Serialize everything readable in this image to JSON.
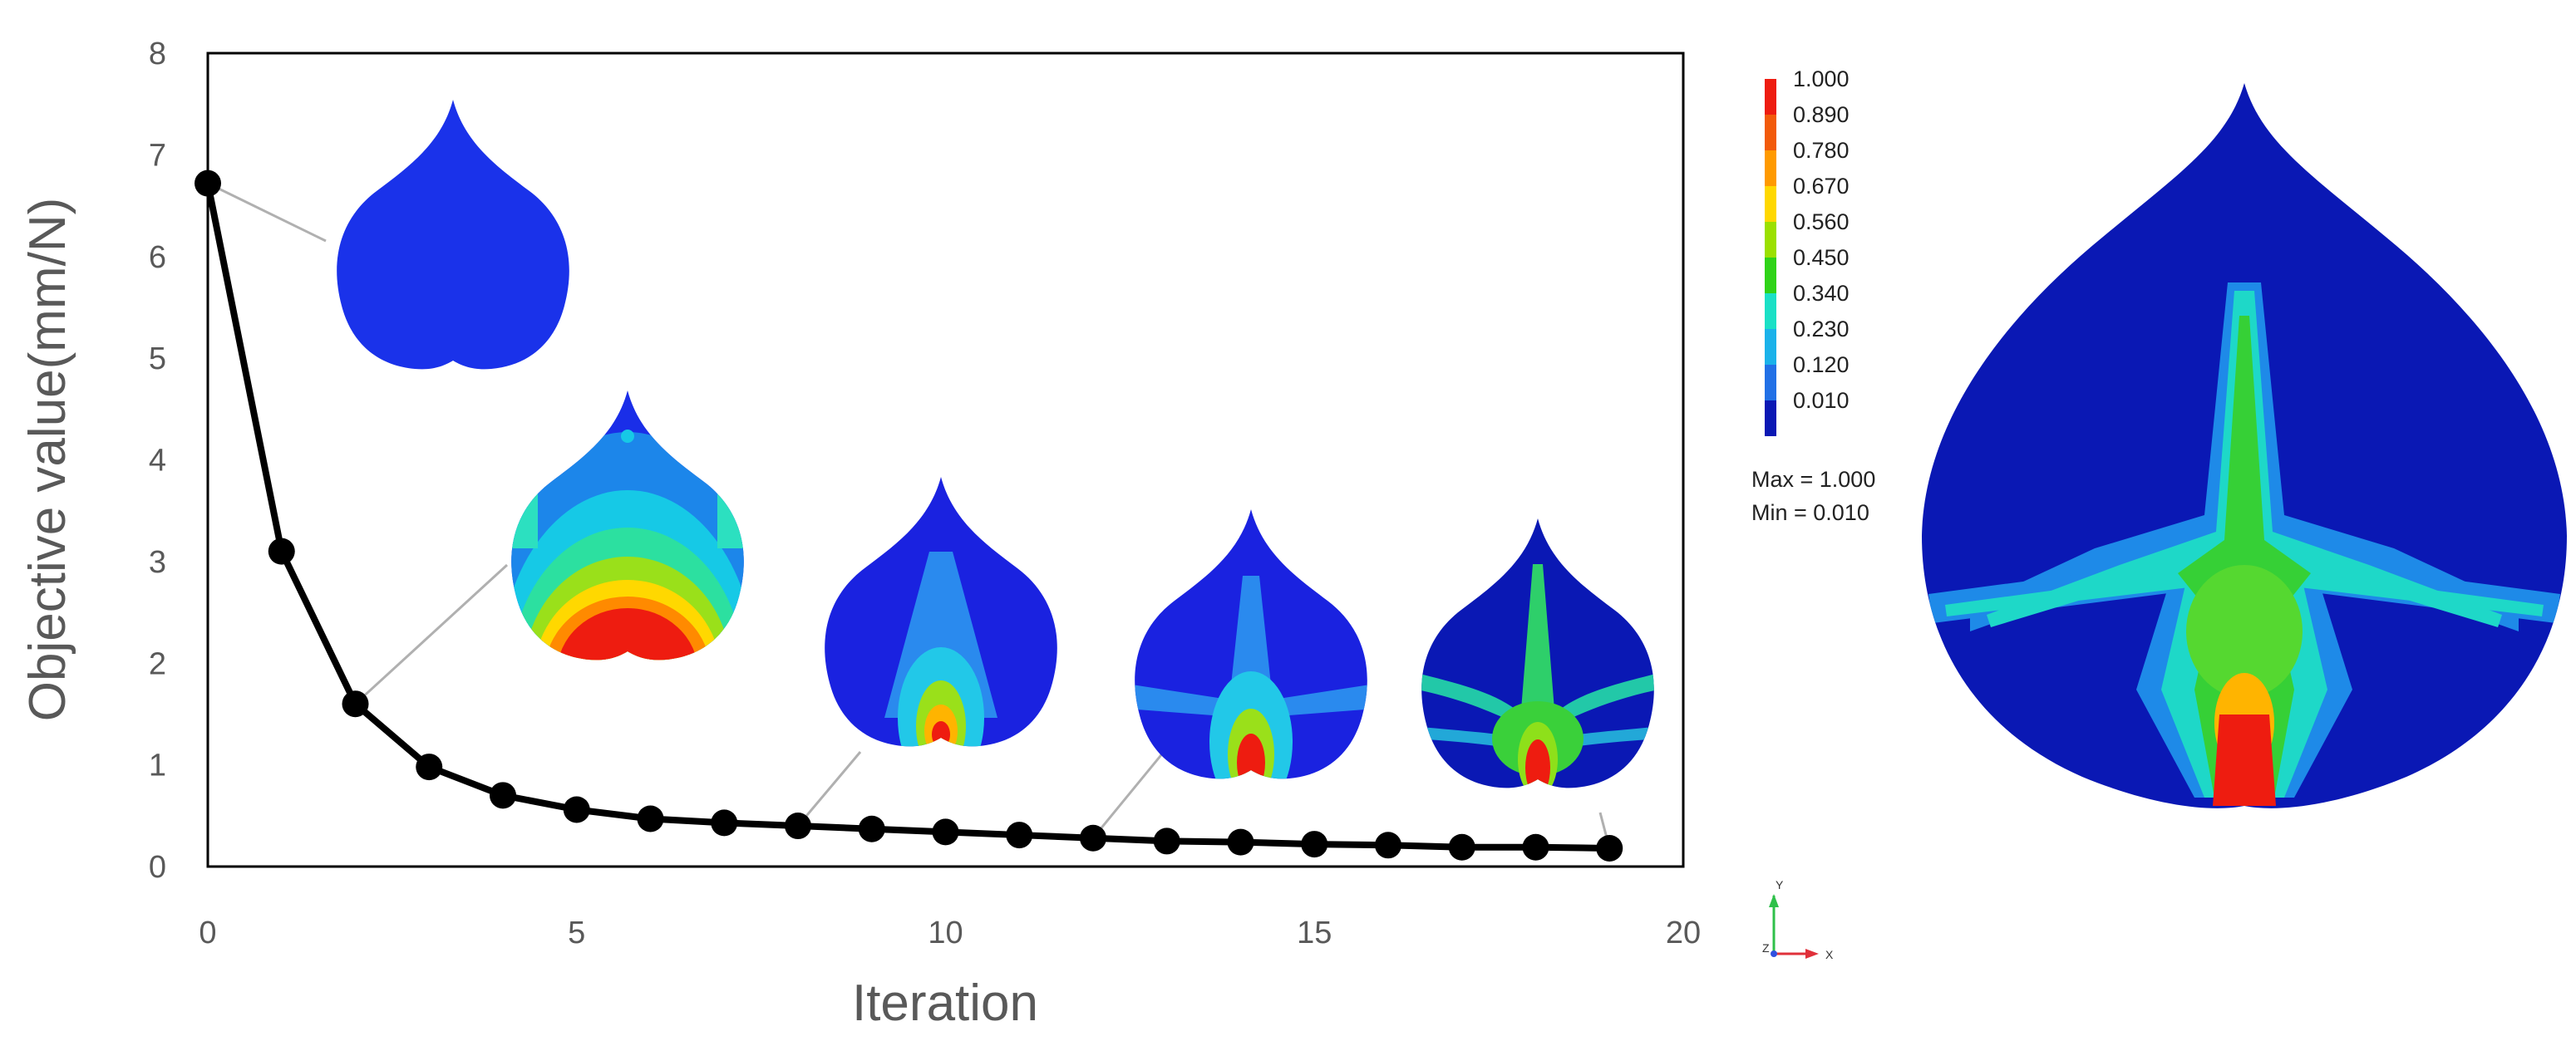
{
  "chart_data": {
    "type": "line",
    "title": "",
    "xlabel": "Iteration",
    "ylabel": "Objective value(mm/N)",
    "xlim": [
      0,
      20
    ],
    "ylim": [
      0,
      8
    ],
    "xticks": [
      0,
      5,
      10,
      15,
      20
    ],
    "yticks": [
      0,
      1,
      2,
      3,
      4,
      5,
      6,
      7,
      8
    ],
    "grid": false,
    "series": [
      {
        "name": "Objective value",
        "color": "#000000",
        "x": [
          0,
          1,
          2,
          3,
          4,
          5,
          6,
          7,
          8,
          9,
          10,
          11,
          12,
          13,
          14,
          15,
          16,
          17,
          18,
          19
        ],
        "y": [
          6.72,
          3.1,
          1.6,
          0.98,
          0.7,
          0.56,
          0.47,
          0.43,
          0.4,
          0.37,
          0.34,
          0.31,
          0.28,
          0.25,
          0.24,
          0.22,
          0.21,
          0.19,
          0.19,
          0.18
        ]
      }
    ],
    "insets": [
      {
        "iteration": 0,
        "label": "density distribution at iteration 0"
      },
      {
        "iteration": 2,
        "label": "density distribution at iteration 2"
      },
      {
        "iteration": 8,
        "label": "density distribution at iteration 8"
      },
      {
        "iteration": 12,
        "label": "density distribution at iteration 12"
      },
      {
        "iteration": 19,
        "label": "density distribution at iteration 19"
      }
    ]
  },
  "legend": {
    "values": [
      "1.000",
      "0.890",
      "0.780",
      "0.670",
      "0.560",
      "0.450",
      "0.340",
      "0.230",
      "0.120",
      "0.010"
    ],
    "colors": [
      "#ee1c10",
      "#f25a0a",
      "#ff9a00",
      "#ffd800",
      "#9be000",
      "#2fd318",
      "#1ae0c6",
      "#1ab2ea",
      "#2170e6",
      "#0a18b4"
    ],
    "max_text": "Max = 1.000",
    "min_text": "Min = 0.010"
  },
  "triad": {
    "y_label": "Y",
    "z_label": "Z",
    "x_label": "X"
  }
}
